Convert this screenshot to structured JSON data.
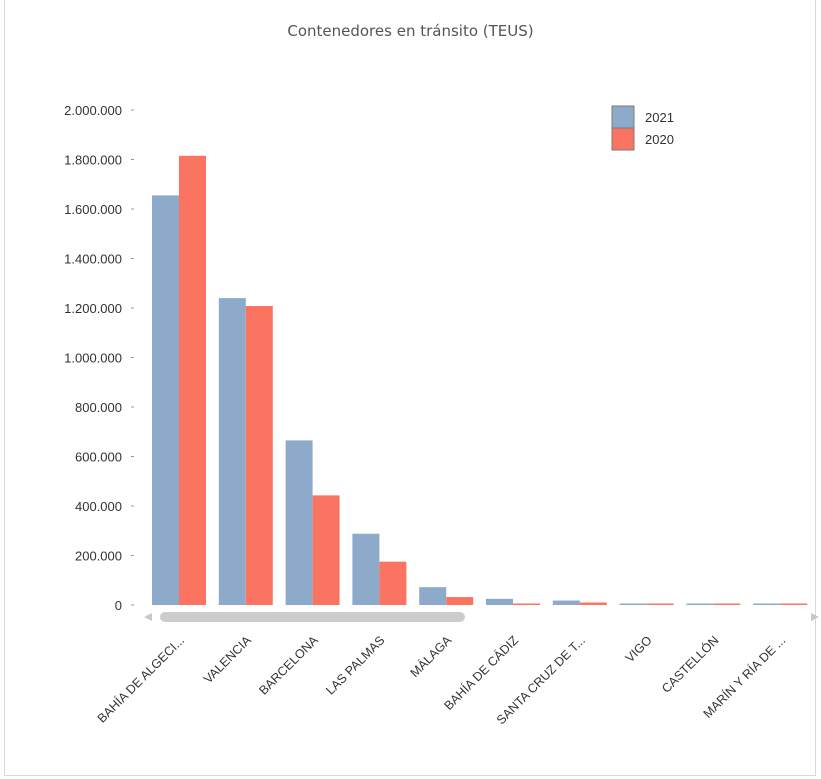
{
  "colors": {
    "series_2021": "#8eaacb",
    "series_2020": "#fb7462",
    "scrollbar": "#cccccc",
    "scroll_arrow": "#c8c8c8"
  },
  "chart_data": {
    "type": "bar",
    "title": "Contenedores en tránsito (TEUS)",
    "xlabel": "",
    "ylabel": "",
    "ylim": [
      0,
      2000000
    ],
    "y_ticks": [
      0,
      200000,
      400000,
      600000,
      800000,
      1000000,
      1200000,
      1400000,
      1600000,
      1800000,
      2000000
    ],
    "y_tick_labels": [
      "0",
      "200.000",
      "400.000",
      "600.000",
      "800.000",
      "1.000.000",
      "1.200.000",
      "1.400.000",
      "1.600.000",
      "1.800.000",
      "2.000.000"
    ],
    "categories": [
      "BAHÍA DE ALGECI...",
      "VALENCIA",
      "BARCELONA",
      "LAS PALMAS",
      "MÁLAGA",
      "BAHÍA DE CÁDIZ",
      "SANTA CRUZ DE T...",
      "VIGO",
      "CASTELLÓN",
      "MARÍN Y RÍA DE ..."
    ],
    "series": [
      {
        "name": "2021",
        "color": "#8eaacb",
        "values": [
          1655000,
          1240000,
          665000,
          288000,
          72000,
          25000,
          18000,
          2000,
          1500,
          1000
        ]
      },
      {
        "name": "2020",
        "color": "#fb7462",
        "values": [
          1815000,
          1208000,
          443000,
          175000,
          32000,
          5000,
          10000,
          3000,
          1500,
          1000
        ]
      }
    ],
    "legend_position": "top-right",
    "grid": false
  }
}
